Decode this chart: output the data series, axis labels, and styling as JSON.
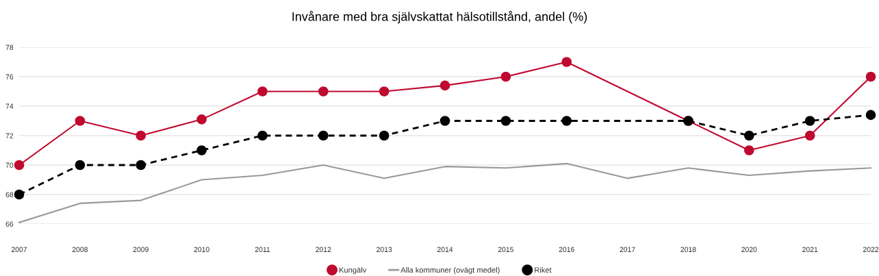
{
  "chart_data": {
    "type": "line",
    "title": "Invånare med bra självskattat hälsotillstånd, andel (%)",
    "categories": [
      "2007",
      "2008",
      "2009",
      "2010",
      "2011",
      "2012",
      "2013",
      "2014",
      "2015",
      "2016",
      "2017",
      "2018",
      "2020",
      "2021",
      "2022"
    ],
    "ylim": [
      66,
      78
    ],
    "yticks": [
      66,
      68,
      70,
      72,
      74,
      76,
      78
    ],
    "grid": "y",
    "legend": "bottom",
    "series": [
      {
        "name": "Kungälv",
        "color": "#c0092f",
        "marker": "circle",
        "line_style": "solid",
        "values": [
          70,
          73,
          72,
          73.1,
          75,
          75,
          75,
          75.4,
          76,
          77,
          null,
          73,
          71,
          72,
          76
        ]
      },
      {
        "name": "Alla kommuner (ovägt medel)",
        "color": "#999999",
        "marker": "none",
        "line_style": "solid",
        "values": [
          66.1,
          67.4,
          67.6,
          69.0,
          69.3,
          70.0,
          69.1,
          69.9,
          69.8,
          70.1,
          69.1,
          69.8,
          69.3,
          69.6,
          69.8
        ]
      },
      {
        "name": "Riket",
        "color": "#000000",
        "marker": "circle",
        "line_style": "dashed",
        "values": [
          68,
          70,
          70,
          71,
          72,
          72,
          72,
          73,
          73,
          73,
          null,
          73,
          72,
          73,
          73.4
        ]
      }
    ]
  }
}
